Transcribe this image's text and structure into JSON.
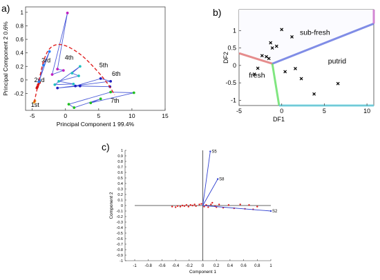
{
  "panel_labels": {
    "a": "a)",
    "b": "b)",
    "c": "c)"
  },
  "chart_data": [
    {
      "type": "scatter",
      "title": "",
      "xlabel": "Principal Component 1 99.4%",
      "ylabel": "Principal Component 2  0.6%",
      "xlim": [
        -6,
        15
      ],
      "ylim": [
        -0.45,
        1.08
      ],
      "xticks": [
        -5,
        0,
        5,
        10,
        15
      ],
      "yticks": [
        -0.2,
        0,
        0.2,
        0.4,
        0.6,
        0.8,
        1
      ],
      "grid": false,
      "groups": [
        {
          "label": "1st",
          "color": "#e8a020",
          "x": [
            -4.7,
            -4.6
          ],
          "y": [
            -0.33,
            -0.31
          ],
          "label_at": [
            -5.2,
            -0.4
          ]
        },
        {
          "label": "2nd",
          "color": "#d01010",
          "x": [
            -4.2,
            -3.9,
            -4.1,
            -4.3
          ],
          "y": [
            -0.1,
            -0.04,
            -0.07,
            -0.12
          ],
          "label_at": [
            -4.7,
            -0.03
          ]
        },
        {
          "label": "3rd",
          "color": "#2080ff",
          "x": [
            -3.3,
            -2.4,
            -3.9,
            -4.0
          ],
          "y": [
            0.22,
            0.42,
            0.0,
            -0.03
          ],
          "label_at": [
            -3.6,
            0.26
          ]
        },
        {
          "label": "4th",
          "color": "#c020c0",
          "x": [
            -2.0,
            0.3,
            -1.2,
            -0.3
          ],
          "y": [
            0.08,
            0.99,
            0.16,
            0.14
          ],
          "label_at": [
            -0.1,
            0.3
          ]
        },
        {
          "label": "5th",
          "color": "#20c0c0",
          "x": [
            -1.6,
            2.2,
            1.0,
            2.0,
            -1.0,
            1.2
          ],
          "y": [
            -0.07,
            0.2,
            0.1,
            0.06,
            -0.02,
            -0.06
          ],
          "label_at": [
            5.1,
            0.19
          ]
        },
        {
          "label": "6th",
          "color": "#2020c0",
          "x": [
            -1.2,
            6.8,
            5.3,
            1.5,
            6.7,
            2.2
          ],
          "y": [
            -0.12,
            -0.02,
            0.02,
            -0.09,
            -0.1,
            -0.09
          ],
          "label_at": [
            7.0,
            0.06
          ]
        },
        {
          "label": "7th",
          "color": "#20c020",
          "x": [
            0.5,
            6.8,
            10.3,
            3.8,
            5.3,
            1.3
          ],
          "y": [
            -0.36,
            -0.18,
            -0.19,
            -0.34,
            -0.28,
            -0.41
          ],
          "label_at": [
            6.8,
            -0.34
          ]
        }
      ],
      "trajectory": {
        "color": "#e02020",
        "x": [
          -4.7,
          -4.0,
          -3.3,
          -2.3,
          -0.5,
          2.1,
          4.2,
          6.3,
          7.4
        ],
        "y": [
          -0.33,
          -0.02,
          0.3,
          0.5,
          0.54,
          0.4,
          0.2,
          -0.04,
          -0.22
        ]
      }
    },
    {
      "type": "scatter",
      "title": "",
      "xlabel": "DF1",
      "ylabel": "DF2",
      "xlim": [
        -5,
        10.8
      ],
      "ylim": [
        -1.15,
        1.6
      ],
      "xticks": [
        -5,
        0,
        5,
        10
      ],
      "yticks": [
        -1,
        -0.5,
        0,
        0.5,
        1
      ],
      "grid": false,
      "region_labels": [
        {
          "text": "sub-fresh",
          "x": 3.9,
          "y": 0.88
        },
        {
          "text": "putrid",
          "x": 6.5,
          "y": 0.06
        },
        {
          "text": "fresh",
          "x": -2.9,
          "y": -0.35
        }
      ],
      "points": {
        "marker": "x",
        "x": [
          -3.2,
          -2.3,
          -1.8,
          -1.5,
          -1.3,
          -1.1,
          -0.6,
          0.0,
          1.2,
          0.4,
          1.6,
          2.3,
          3.8,
          6.6,
          -2.8
        ],
        "y": [
          -0.25,
          0.28,
          0.25,
          0.2,
          0.65,
          0.5,
          0.55,
          1.03,
          0.82,
          -0.18,
          -0.09,
          -0.38,
          -0.82,
          -0.52,
          -0.08
        ]
      },
      "boundaries": [
        {
          "color": "#e07070",
          "x": [
            -5,
            -1.1
          ],
          "y": [
            0.35,
            0.05
          ]
        },
        {
          "color": "#6070e0",
          "x": [
            -1.1,
            10.8
          ],
          "y": [
            0.05,
            1.2
          ]
        },
        {
          "color": "#d070d0",
          "x": [
            10.8,
            10.8
          ],
          "y": [
            1.2,
            1.6
          ]
        },
        {
          "color": "#60e060",
          "x": [
            -1.1,
            -0.3
          ],
          "y": [
            0.05,
            -1.15
          ]
        },
        {
          "color": "#60d0e0",
          "x": [
            -0.3,
            10.8
          ],
          "y": [
            -1.15,
            -1.15
          ]
        }
      ]
    },
    {
      "type": "scatter",
      "title": "",
      "xlabel": "Component 1",
      "ylabel": "Component 2",
      "xlim": [
        -1,
        1
      ],
      "ylim": [
        -1,
        1
      ],
      "xticks": [
        -1,
        -0.8,
        -0.6,
        -0.4,
        -0.2,
        0,
        0.2,
        0.4,
        0.6,
        0.8,
        1
      ],
      "yticks": [
        -1,
        -0.9,
        -0.8,
        -0.7,
        -0.6,
        -0.5,
        -0.4,
        -0.3,
        -0.2,
        -0.1,
        0,
        0.1,
        0.2,
        0.3,
        0.4,
        0.5,
        0.6,
        0.7,
        0.8,
        0.9,
        1
      ],
      "xtick_labels": [
        "-1",
        "-0.8",
        "-0.6",
        "-0.4",
        "-0.2",
        "0",
        "0.2",
        "0.4",
        "0.6",
        "0.8",
        "1"
      ],
      "ytick_labels": [
        "-1",
        "-0.9",
        "-0.8",
        "-0.7",
        "-0.6",
        "-0.5",
        "-0.4",
        "-0.3",
        "-0.2",
        "-0.1",
        "0",
        "0.1",
        "0.2",
        "0.3",
        "0.4",
        "0.5",
        "0.6",
        "0.7",
        "0.8",
        "0.9",
        "1"
      ],
      "grid": false,
      "loadings": [
        {
          "name": "S5",
          "x": 0.11,
          "y": 0.98
        },
        {
          "name": "S8",
          "x": 0.22,
          "y": 0.48
        },
        {
          "name": "S2",
          "x": 1.0,
          "y": -0.1
        }
      ],
      "scores": {
        "color": "#e02020",
        "x": [
          -0.45,
          -0.4,
          -0.37,
          -0.33,
          -0.3,
          -0.27,
          -0.24,
          -0.21,
          -0.18,
          -0.15,
          -0.12,
          -0.1,
          -0.05,
          -0.02,
          0.02,
          0.05,
          0.08,
          0.12,
          0.18,
          0.24,
          0.3,
          0.38,
          0.46,
          0.55,
          0.62,
          0.68,
          0.74,
          0.8,
          0.14,
          0.2
        ],
        "y": [
          -0.02,
          -0.03,
          -0.01,
          -0.02,
          0.0,
          -0.01,
          0.01,
          -0.02,
          0.01,
          0.0,
          0.02,
          -0.01,
          0.02,
          0.03,
          -0.02,
          0.01,
          -0.03,
          0.02,
          -0.01,
          0.02,
          -0.04,
          0.01,
          -0.05,
          0.02,
          -0.06,
          0.01,
          -0.07,
          -0.02,
          0.05,
          -0.03
        ]
      }
    }
  ]
}
